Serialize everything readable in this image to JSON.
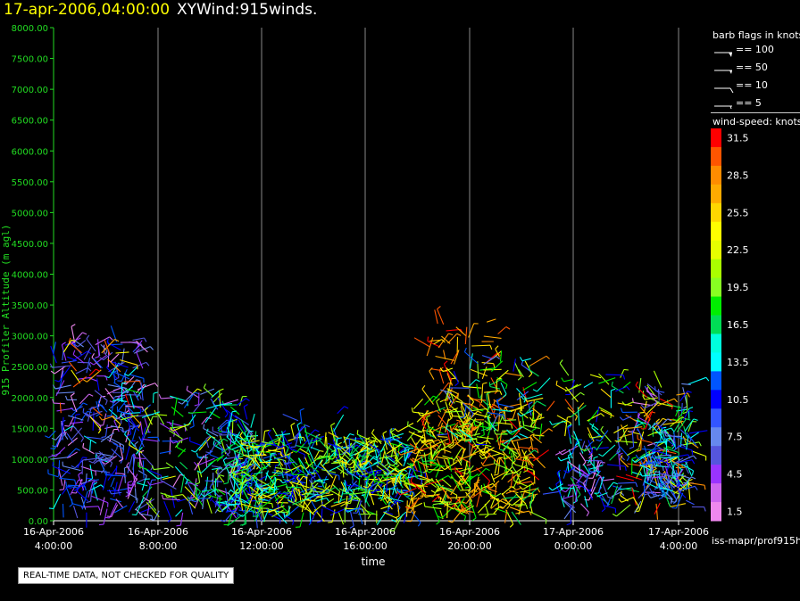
{
  "header": {
    "date": "17-apr-2006,04:00:00",
    "product": "XYWind:915winds."
  },
  "legend": {
    "barb_title": "barb flags in knots",
    "barb_flags": [
      "== 100",
      "== 50",
      "== 10",
      "== 5"
    ],
    "speed_title": "wind-speed: knots",
    "source": "iss-mapr/prof915h"
  },
  "notice": "REAL-TIME DATA, NOT CHECKED FOR QUALITY",
  "colors": {
    "axis": "#22dd22",
    "grid": "#888888",
    "title": "#ffff00"
  },
  "chart_data": {
    "type": "scatter",
    "ylabel": "915 Profiler Altitude (m agl)",
    "xlabel": "time",
    "ylim": [
      0,
      8000
    ],
    "y_ticks": [
      "0.00",
      "500.00",
      "1000.00",
      "1500.00",
      "2000.00",
      "2500.00",
      "3000.00",
      "3500.00",
      "4000.00",
      "4500.00",
      "5000.00",
      "5500.00",
      "6000.00",
      "6500.00",
      "7000.00",
      "7500.00",
      "8000.00"
    ],
    "x_ticks": [
      {
        "date": "16-Apr-2006",
        "time": "4:00:00"
      },
      {
        "date": "16-Apr-2006",
        "time": "8:00:00"
      },
      {
        "date": "16-Apr-2006",
        "time": "12:00:00"
      },
      {
        "date": "16-Apr-2006",
        "time": "16:00:00"
      },
      {
        "date": "16-Apr-2006",
        "time": "20:00:00"
      },
      {
        "date": "17-Apr-2006",
        "time": "0:00:00"
      },
      {
        "date": "17-Apr-2006",
        "time": "4:00:00"
      }
    ],
    "grid": "vertical",
    "color_scale": {
      "label": "wind-speed: knots",
      "bins": [
        {
          "label": "31.5",
          "color": "#ff0000"
        },
        {
          "label": "",
          "color": "#ff5500"
        },
        {
          "label": "28.5",
          "color": "#ff8c00"
        },
        {
          "label": "",
          "color": "#ffaa00"
        },
        {
          "label": "25.5",
          "color": "#ffd700"
        },
        {
          "label": "",
          "color": "#ffff00"
        },
        {
          "label": "22.5",
          "color": "#e6ff00"
        },
        {
          "label": "",
          "color": "#aaff00"
        },
        {
          "label": "19.5",
          "color": "#88ff22"
        },
        {
          "label": "",
          "color": "#00ee00"
        },
        {
          "label": "16.5",
          "color": "#00dd55"
        },
        {
          "label": "",
          "color": "#00ffdd"
        },
        {
          "label": "13.5",
          "color": "#00ffff"
        },
        {
          "label": "",
          "color": "#0055ff"
        },
        {
          "label": "10.5",
          "color": "#0000ff"
        },
        {
          "label": "",
          "color": "#3355ff"
        },
        {
          "label": "7.5",
          "color": "#6688ee"
        },
        {
          "label": "",
          "color": "#5555dd"
        },
        {
          "label": "4.5",
          "color": "#9933ff"
        },
        {
          "label": "",
          "color": "#cc66ee"
        },
        {
          "label": "1.5",
          "color": "#ee88ee"
        }
      ]
    }
  }
}
